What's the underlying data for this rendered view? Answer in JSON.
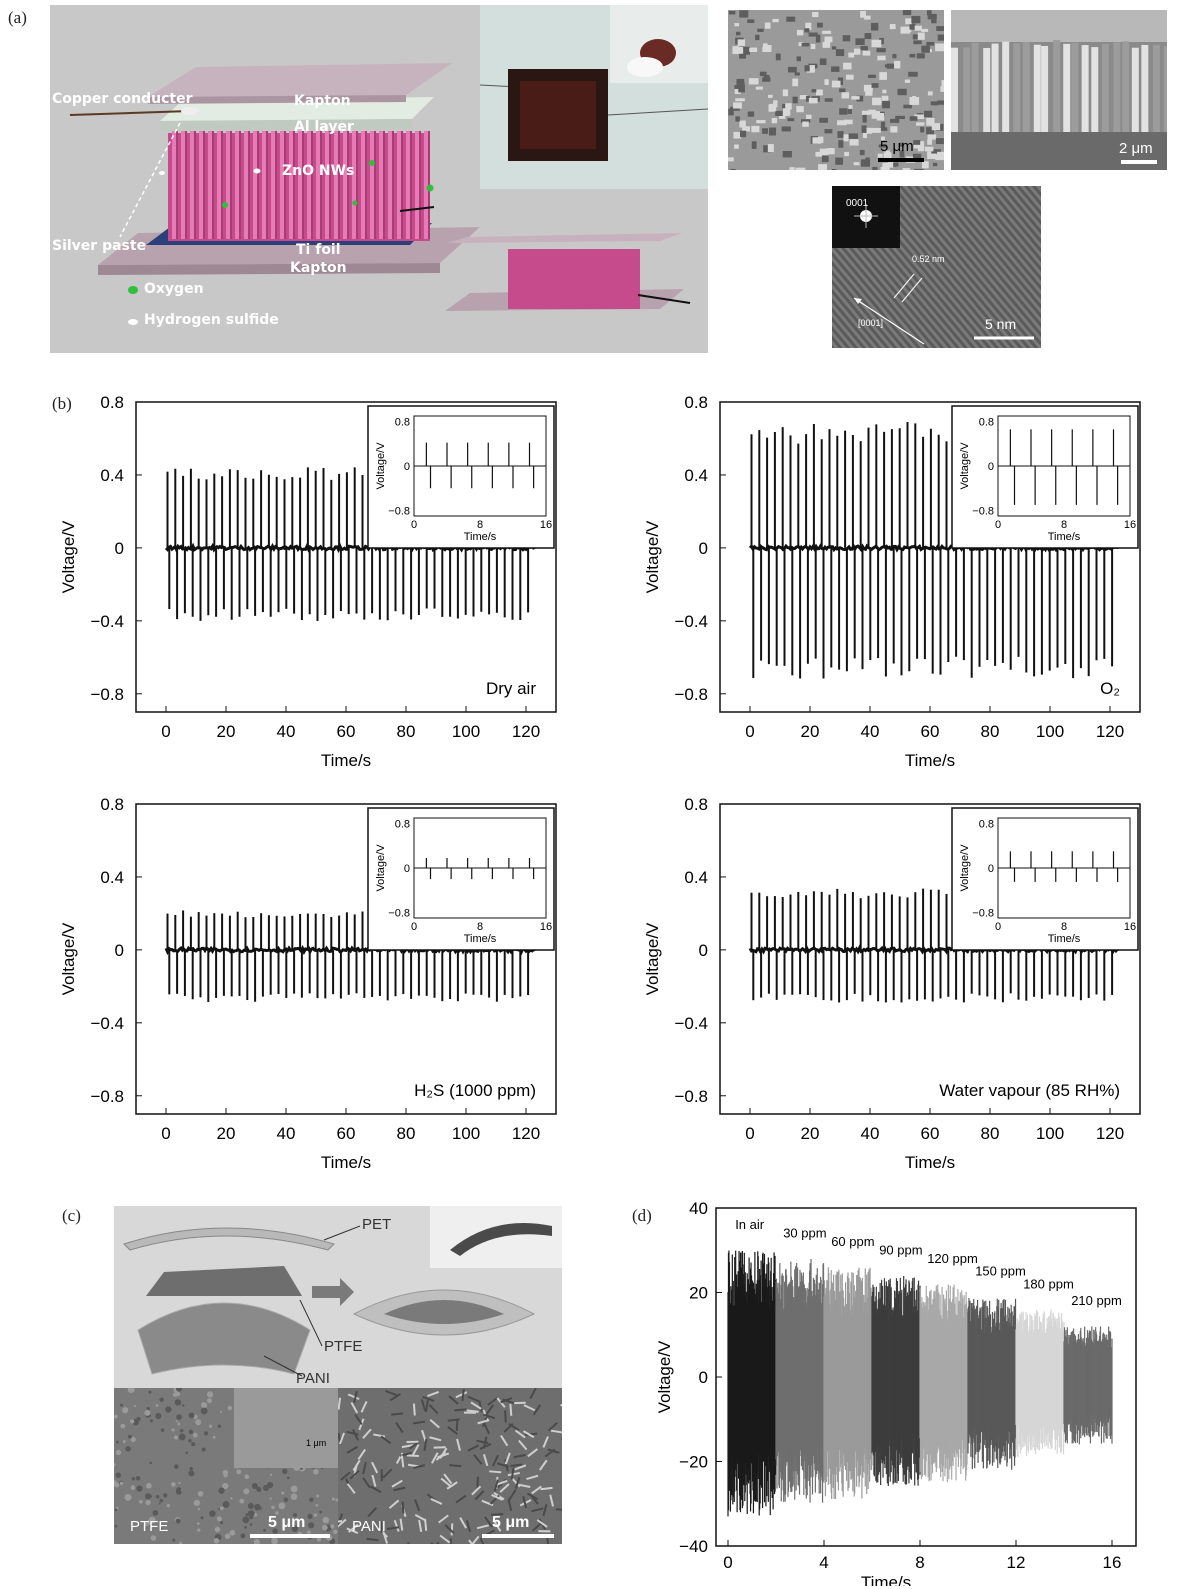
{
  "panels": {
    "a": "(a)",
    "b": "(b)",
    "c": "(c)",
    "d": "(d)"
  },
  "panel_a": {
    "labels": {
      "copper": "Copper conducter",
      "kapton_top": "Kapton",
      "al_layer": "Al layer",
      "zno": "ZnO NWs",
      "silver": "Silver paste",
      "ti_foil": "Ti foil",
      "kapton_bottom": "Kapton",
      "oxygen": "Oxygen",
      "h2s": "Hydrogen sulfide"
    },
    "sem_scale_1": "5 μm",
    "sem_scale_2": "2 μm",
    "tem": {
      "saed": "0001",
      "spacing": "0.52 nm",
      "direction": "[0001]",
      "scale": "5 nm"
    },
    "colors": {
      "background": "#c9c9c9",
      "nanowire": "#d4549a",
      "kapton": "#b9a3b0",
      "foil": "#2c3f7a",
      "oxygen": "#2fbf3a"
    }
  },
  "panel_c": {
    "labels": {
      "pet": "PET",
      "ptfe": "PTFE",
      "pani": "PANI"
    },
    "sem_left": "PTFE",
    "sem_right": "PANI",
    "scale_left": "5 μm",
    "scale_right": "5 μm",
    "scale_inset": "1 μm"
  },
  "chart_data": [
    {
      "type": "line",
      "subplot": "b-1",
      "annotation": "Dry air",
      "xlabel": "Time/s",
      "ylabel": "Voltage/V",
      "xlim": [
        -10,
        130
      ],
      "ylim": [
        -0.9,
        0.8
      ],
      "xticks": [
        "0",
        "20",
        "40",
        "60",
        "80",
        "100",
        "120"
      ],
      "yticks": [
        "0.8",
        "0.4",
        "0",
        "−0.4",
        "−0.8"
      ],
      "pulse_period_s": 2.6,
      "pos_peak": 0.43,
      "neg_peak": -0.39,
      "inset": {
        "xlabel": "Time/s",
        "ylabel": "Voltage/V",
        "xticks": [
          "0",
          "8",
          "16"
        ],
        "yticks": [
          "0.8",
          "0",
          "−0.8"
        ],
        "pos_peak": 0.42,
        "neg_peak": -0.4
      }
    },
    {
      "type": "line",
      "subplot": "b-2",
      "annotation": "O₂",
      "xlabel": "Time/s",
      "ylabel": "Voltage/V",
      "xlim": [
        -10,
        130
      ],
      "ylim": [
        -0.9,
        0.8
      ],
      "xticks": [
        "0",
        "20",
        "40",
        "60",
        "80",
        "100",
        "120"
      ],
      "yticks": [
        "0.8",
        "0.4",
        "0",
        "−0.4",
        "−0.8"
      ],
      "pulse_period_s": 2.6,
      "pos_peak": 0.67,
      "neg_peak": -0.7,
      "inset": {
        "xlabel": "Time/s",
        "ylabel": "Voltage/V",
        "xticks": [
          "0",
          "8",
          "16"
        ],
        "yticks": [
          "0.8",
          "0",
          "−0.8"
        ],
        "pos_peak": 0.66,
        "neg_peak": -0.7
      }
    },
    {
      "type": "line",
      "subplot": "b-3",
      "annotation": "H₂S (1000 ppm)",
      "xlabel": "Time/s",
      "ylabel": "Voltage/V",
      "xlim": [
        -10,
        130
      ],
      "ylim": [
        -0.9,
        0.8
      ],
      "xticks": [
        "0",
        "20",
        "40",
        "60",
        "80",
        "100",
        "120"
      ],
      "yticks": [
        "0.8",
        "0.4",
        "0",
        "−0.4",
        "−0.8"
      ],
      "pulse_period_s": 2.6,
      "pos_peak": 0.21,
      "neg_peak": -0.28,
      "inset": {
        "xlabel": "Time/s",
        "ylabel": "Voltage/V",
        "xticks": [
          "0",
          "8",
          "16"
        ],
        "yticks": [
          "0.8",
          "0",
          "−0.8"
        ],
        "pos_peak": 0.18,
        "neg_peak": -0.2
      }
    },
    {
      "type": "line",
      "subplot": "b-4",
      "annotation": "Water vapour (85 RH%)",
      "xlabel": "Time/s",
      "ylabel": "Voltage/V",
      "xlim": [
        -10,
        130
      ],
      "ylim": [
        -0.9,
        0.8
      ],
      "xticks": [
        "0",
        "20",
        "40",
        "60",
        "80",
        "100",
        "120"
      ],
      "yticks": [
        "0.8",
        "0.4",
        "0",
        "−0.4",
        "−0.8"
      ],
      "pulse_period_s": 2.6,
      "pos_peak": 0.33,
      "neg_peak": -0.28,
      "inset": {
        "xlabel": "Time/s",
        "ylabel": "Voltage/V",
        "xticks": [
          "0",
          "8",
          "16"
        ],
        "yticks": [
          "0.8",
          "0",
          "−0.8"
        ],
        "pos_peak": 0.3,
        "neg_peak": -0.25
      }
    },
    {
      "type": "area",
      "subplot": "d",
      "xlabel": "Time/s",
      "ylabel": "Voltage/V",
      "xlim": [
        -0.5,
        17
      ],
      "ylim": [
        -40,
        40
      ],
      "xticks": [
        "0",
        "4",
        "8",
        "12",
        "16"
      ],
      "yticks": [
        "40",
        "20",
        "0",
        "−20",
        "−40"
      ],
      "segments": [
        {
          "label": "In air",
          "x": [
            0,
            2
          ],
          "max": 30,
          "min": -33,
          "color": "#1a1a1a"
        },
        {
          "label": "30 ppm",
          "x": [
            2,
            4
          ],
          "max": 28,
          "min": -30,
          "color": "#6e6e6e"
        },
        {
          "label": "60 ppm",
          "x": [
            4,
            6
          ],
          "max": 26,
          "min": -29,
          "color": "#9a9a9a"
        },
        {
          "label": "90 ppm",
          "x": [
            6,
            8
          ],
          "max": 24,
          "min": -26,
          "color": "#3c3c3c"
        },
        {
          "label": "120 ppm",
          "x": [
            8,
            10
          ],
          "max": 22,
          "min": -25,
          "color": "#a8a8a8"
        },
        {
          "label": "150 ppm",
          "x": [
            10,
            12
          ],
          "max": 19,
          "min": -22,
          "color": "#585858"
        },
        {
          "label": "180 ppm",
          "x": [
            12,
            14
          ],
          "max": 16,
          "min": -19,
          "color": "#d6d6d6"
        },
        {
          "label": "210 ppm",
          "x": [
            14,
            16
          ],
          "max": 12,
          "min": -16,
          "color": "#6a6a6a"
        }
      ]
    }
  ]
}
